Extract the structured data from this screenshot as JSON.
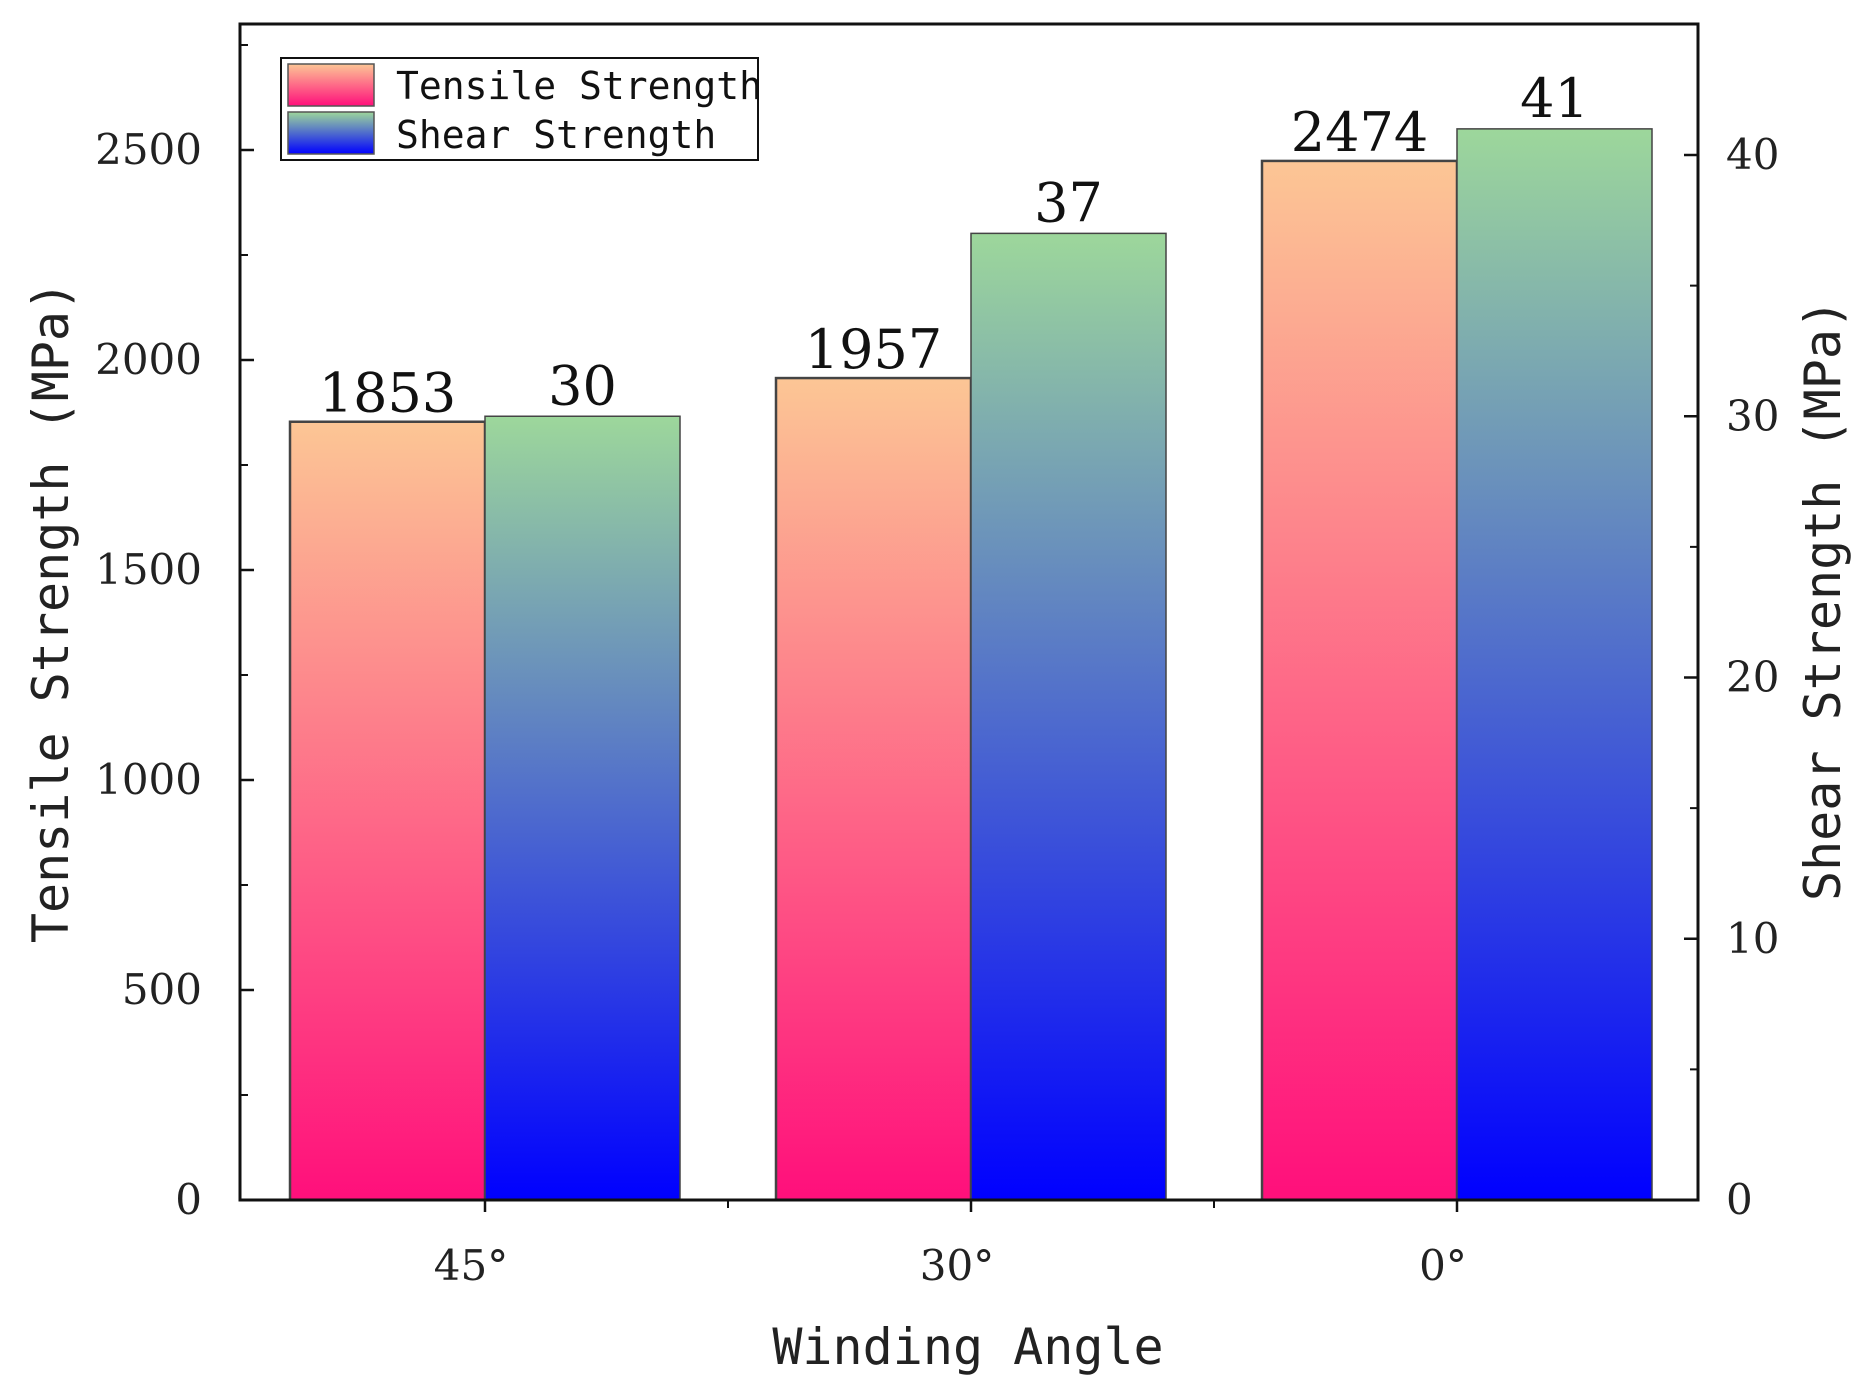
{
  "chart_data": {
    "type": "bar",
    "categories": [
      "45°",
      "30°",
      "0°"
    ],
    "xlabel": "Winding Angle",
    "series": [
      {
        "name": "Tensile Strength",
        "values": [
          1853,
          1957,
          2474
        ],
        "labels": [
          "1853",
          "1957",
          "2474"
        ],
        "axis": "left",
        "gradient": {
          "top": "#fcc695",
          "bottom": "#ff0f7b"
        }
      },
      {
        "name": "Shear Strength",
        "values": [
          30,
          37,
          41
        ],
        "labels": [
          "30",
          "37",
          "41"
        ],
        "axis": "right",
        "gradient": {
          "top": "#9dd79b",
          "bottom": "#0000ff"
        }
      }
    ],
    "y_left": {
      "label": "Tensile Strength (MPa)",
      "ylim": [
        0,
        2800
      ],
      "ticks": [
        0,
        500,
        1000,
        1500,
        2000,
        2500
      ],
      "tick_labels": [
        "0",
        "500",
        "1000",
        "1500",
        "2000",
        "2500"
      ]
    },
    "y_right": {
      "label": "Shear Strength (MPa)",
      "ylim": [
        0,
        40
      ],
      "ticks": [
        0,
        10,
        20,
        30,
        40
      ],
      "tick_labels": [
        "0",
        "10",
        "20",
        "30",
        "40"
      ]
    },
    "legend": "top-left",
    "grid": false
  }
}
